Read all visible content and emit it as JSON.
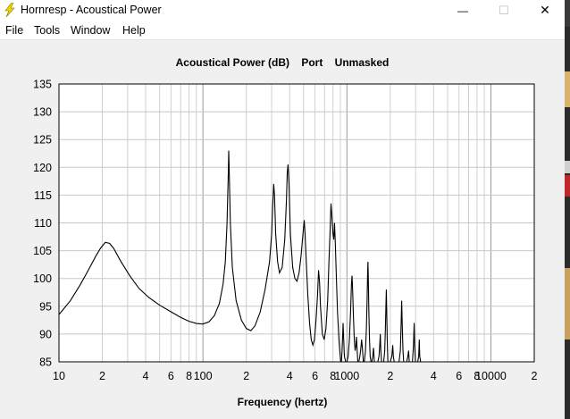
{
  "window": {
    "title": "Hornresp - Acoustical Power",
    "icon": "lightning-bolt-icon",
    "controls": {
      "minimize": "—",
      "maximize": "☐",
      "close": "✕"
    }
  },
  "menu": [
    "File",
    "Tools",
    "Window",
    "Help"
  ],
  "chart_data": {
    "type": "line",
    "title": "Acoustical Power (dB)    Port    Unmasked",
    "xlabel": "Frequency (hertz)",
    "ylabel": "",
    "x_scale": "log",
    "xlim": [
      10,
      20000
    ],
    "ylim": [
      85,
      135
    ],
    "grid": true,
    "y_ticks": [
      85,
      90,
      95,
      100,
      105,
      110,
      115,
      120,
      125,
      130,
      135
    ],
    "x_tick_labels": [
      {
        "value": 10,
        "label": "10"
      },
      {
        "value": 20,
        "label": "2"
      },
      {
        "value": 40,
        "label": "4"
      },
      {
        "value": 60,
        "label": "6"
      },
      {
        "value": 80,
        "label": "8"
      },
      {
        "value": 100,
        "label": "100"
      },
      {
        "value": 200,
        "label": "2"
      },
      {
        "value": 400,
        "label": "4"
      },
      {
        "value": 600,
        "label": "6"
      },
      {
        "value": 800,
        "label": "8"
      },
      {
        "value": 1000,
        "label": "1000"
      },
      {
        "value": 2000,
        "label": "2"
      },
      {
        "value": 4000,
        "label": "4"
      },
      {
        "value": 6000,
        "label": "6"
      },
      {
        "value": 8000,
        "label": "8"
      },
      {
        "value": 10000,
        "label": "10000"
      },
      {
        "value": 20000,
        "label": "2"
      }
    ],
    "series": [
      {
        "color": "#000000",
        "points": [
          [
            10,
            93.5
          ],
          [
            12,
            96
          ],
          [
            14,
            98.8
          ],
          [
            16,
            101.5
          ],
          [
            18,
            104
          ],
          [
            19.5,
            105.5
          ],
          [
            21,
            106.5
          ],
          [
            22.5,
            106.3
          ],
          [
            24,
            105.4
          ],
          [
            27,
            103
          ],
          [
            31,
            100.5
          ],
          [
            36,
            98.2
          ],
          [
            42,
            96.6
          ],
          [
            50,
            95.2
          ],
          [
            60,
            94
          ],
          [
            70,
            93
          ],
          [
            80,
            92.3
          ],
          [
            90,
            91.9
          ],
          [
            100,
            91.8
          ],
          [
            110,
            92.2
          ],
          [
            120,
            93.3
          ],
          [
            130,
            95.5
          ],
          [
            138,
            99
          ],
          [
            143,
            103
          ],
          [
            147,
            110
          ],
          [
            150,
            119
          ],
          [
            151,
            123
          ],
          [
            152,
            120
          ],
          [
            155,
            110
          ],
          [
            160,
            102
          ],
          [
            170,
            96
          ],
          [
            185,
            92.5
          ],
          [
            200,
            91
          ],
          [
            215,
            90.6
          ],
          [
            230,
            91.5
          ],
          [
            250,
            94
          ],
          [
            270,
            98
          ],
          [
            290,
            103
          ],
          [
            300,
            108
          ],
          [
            305,
            113
          ],
          [
            310,
            117
          ],
          [
            314,
            115
          ],
          [
            320,
            108
          ],
          [
            330,
            103
          ],
          [
            340,
            101
          ],
          [
            355,
            102
          ],
          [
            370,
            107
          ],
          [
            380,
            114
          ],
          [
            385,
            119
          ],
          [
            390,
            120.5
          ],
          [
            396,
            117
          ],
          [
            405,
            108
          ],
          [
            420,
            102
          ],
          [
            435,
            100
          ],
          [
            450,
            99.5
          ],
          [
            465,
            101
          ],
          [
            480,
            104
          ],
          [
            495,
            108
          ],
          [
            505,
            110.5
          ],
          [
            512,
            108
          ],
          [
            522,
            103
          ],
          [
            535,
            97
          ],
          [
            550,
            92
          ],
          [
            565,
            89
          ],
          [
            580,
            88
          ],
          [
            595,
            89
          ],
          [
            610,
            92.5
          ],
          [
            625,
            97
          ],
          [
            635,
            101.5
          ],
          [
            645,
            99.5
          ],
          [
            655,
            95
          ],
          [
            675,
            90
          ],
          [
            695,
            89
          ],
          [
            715,
            91
          ],
          [
            735,
            96
          ],
          [
            750,
            103
          ],
          [
            765,
            109
          ],
          [
            775,
            113.5
          ],
          [
            785,
            111.5
          ],
          [
            800,
            108
          ],
          [
            810,
            107
          ],
          [
            820,
            110
          ],
          [
            830,
            106.5
          ],
          [
            845,
            100
          ],
          [
            860,
            94
          ],
          [
            880,
            89
          ],
          [
            895,
            86.5
          ],
          [
            905,
            85
          ],
          [
            915,
            85
          ],
          [
            925,
            87
          ],
          [
            935,
            90
          ],
          [
            940,
            92
          ],
          [
            950,
            89
          ],
          [
            960,
            86
          ],
          [
            980,
            85
          ],
          [
            1000,
            85
          ],
          [
            1020,
            86
          ],
          [
            1040,
            89
          ],
          [
            1060,
            94
          ],
          [
            1075,
            99
          ],
          [
            1085,
            100.5
          ],
          [
            1095,
            98
          ],
          [
            1110,
            93
          ],
          [
            1125,
            89
          ],
          [
            1140,
            87
          ],
          [
            1155,
            88
          ],
          [
            1165,
            89.5
          ],
          [
            1175,
            87.5
          ],
          [
            1190,
            85
          ],
          [
            1210,
            85
          ],
          [
            1230,
            86
          ],
          [
            1250,
            87.5
          ],
          [
            1265,
            89
          ],
          [
            1280,
            87.5
          ],
          [
            1300,
            85
          ],
          [
            1320,
            85
          ],
          [
            1345,
            87
          ],
          [
            1365,
            91
          ],
          [
            1380,
            96
          ],
          [
            1392,
            101
          ],
          [
            1400,
            103
          ],
          [
            1408,
            100
          ],
          [
            1420,
            94
          ],
          [
            1435,
            89
          ],
          [
            1450,
            86
          ],
          [
            1470,
            85
          ],
          [
            1490,
            85
          ],
          [
            1510,
            86
          ],
          [
            1530,
            87.5
          ],
          [
            1550,
            85
          ],
          [
            1580,
            85
          ],
          [
            1640,
            85
          ],
          [
            1670,
            86
          ],
          [
            1690,
            88
          ],
          [
            1705,
            90
          ],
          [
            1720,
            87
          ],
          [
            1740,
            85
          ],
          [
            1800,
            85
          ],
          [
            1830,
            87
          ],
          [
            1850,
            91
          ],
          [
            1865,
            95
          ],
          [
            1878,
            98
          ],
          [
            1890,
            94
          ],
          [
            1905,
            89
          ],
          [
            1925,
            85
          ],
          [
            1950,
            85
          ],
          [
            2000,
            85
          ],
          [
            2050,
            86
          ],
          [
            2080,
            88
          ],
          [
            2100,
            86
          ],
          [
            2130,
            85
          ],
          [
            2200,
            85
          ],
          [
            2300,
            85
          ],
          [
            2350,
            87
          ],
          [
            2380,
            92
          ],
          [
            2400,
            96
          ],
          [
            2420,
            92
          ],
          [
            2450,
            87
          ],
          [
            2480,
            85
          ],
          [
            2600,
            85
          ],
          [
            2650,
            86
          ],
          [
            2680,
            87
          ],
          [
            2710,
            85
          ],
          [
            2850,
            85
          ],
          [
            2900,
            88
          ],
          [
            2930,
            92
          ],
          [
            2955,
            88
          ],
          [
            2990,
            85
          ],
          [
            3100,
            85
          ],
          [
            3150,
            86
          ],
          [
            3180,
            89
          ],
          [
            3205,
            86
          ],
          [
            3250,
            85
          ]
        ]
      }
    ]
  }
}
